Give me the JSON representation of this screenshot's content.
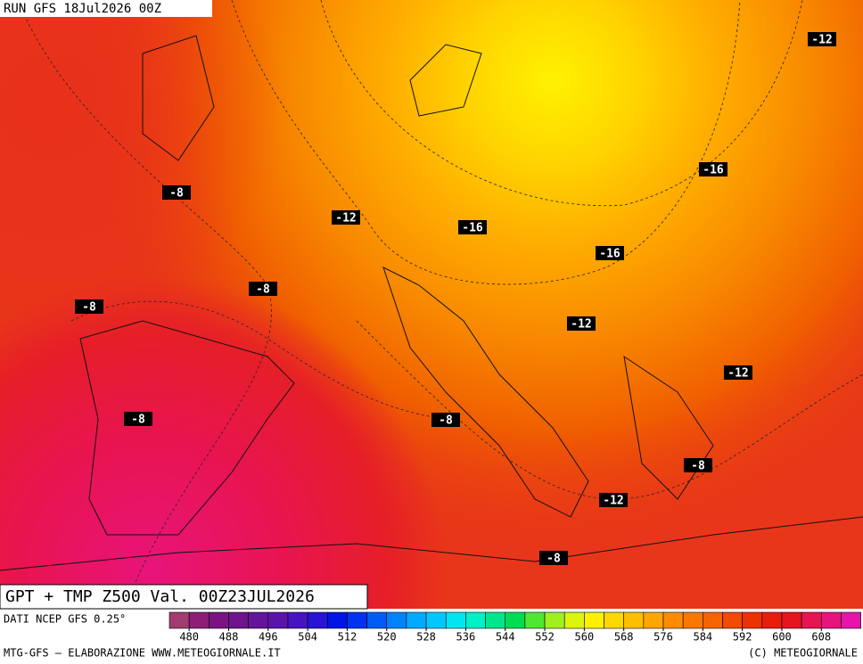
{
  "header": {
    "run": "RUN GFS 18Jul2026 00Z"
  },
  "map": {
    "title": "GPT + TMP Z500 Val. 00Z23JUL2026",
    "temperature_labels": [
      -12,
      -8,
      -12,
      -16,
      -16,
      -16,
      -8,
      -8,
      -12,
      -12,
      -8,
      -8,
      -8,
      -12,
      -8
    ]
  },
  "colorbar": {
    "source": "DATI NCEP GFS 0.25°",
    "colors": [
      "#a03c6e",
      "#8c1e78",
      "#7a1482",
      "#6e148c",
      "#64149b",
      "#5a14aa",
      "#4614be",
      "#2814d2",
      "#0014e6",
      "#0032f0",
      "#005af5",
      "#0082fa",
      "#00aaff",
      "#00c8ff",
      "#00e6f0",
      "#00f0c8",
      "#00e68c",
      "#00dc50",
      "#50e632",
      "#a0f01e",
      "#dcf50a",
      "#fff000",
      "#ffd700",
      "#ffbe00",
      "#ffa500",
      "#ff8c00",
      "#fa7800",
      "#f56400",
      "#f04b00",
      "#eb3200",
      "#e61e0a",
      "#e6141e",
      "#e61450",
      "#e6147d",
      "#e614aa"
    ],
    "ticks": [
      480,
      488,
      496,
      504,
      512,
      520,
      528,
      536,
      544,
      552,
      560,
      568,
      576,
      584,
      592,
      600,
      608
    ]
  },
  "footer": {
    "left": "MTG-GFS — ELABORAZIONE WWW.METEOGIORNALE.IT",
    "right": "(C) METEOGIORNALE"
  }
}
